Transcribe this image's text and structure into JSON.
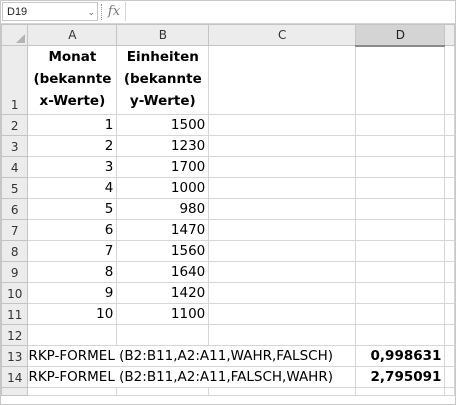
{
  "name_box": {
    "value": "D19"
  },
  "formula_bar": {
    "fx_label": "fx",
    "value": ""
  },
  "columns": [
    "A",
    "B",
    "C",
    "D"
  ],
  "rows": [
    "1",
    "2",
    "3",
    "4",
    "5",
    "6",
    "7",
    "8",
    "9",
    "10",
    "11",
    "12",
    "13",
    "14"
  ],
  "header": {
    "a1_lines": [
      "Monat",
      "(bekannte",
      "x-Werte)"
    ],
    "b1_lines": [
      "Einheiten",
      "(bekannte",
      "y-Werte)"
    ]
  },
  "data": {
    "a": [
      "1",
      "2",
      "3",
      "4",
      "5",
      "6",
      "7",
      "8",
      "9",
      "10"
    ],
    "b": [
      "1500",
      "1230",
      "1700",
      "1000",
      "980",
      "1470",
      "1560",
      "1640",
      "1420",
      "1100"
    ]
  },
  "formulas": [
    {
      "text": "RKP-FORMEL (B2:B11,A2:A11,WAHR,FALSCH)",
      "result": "0,998631"
    },
    {
      "text": "RKP-FORMEL (B2:B11,A2:A11,FALSCH,WAHR)",
      "result": "2,795091"
    }
  ]
}
